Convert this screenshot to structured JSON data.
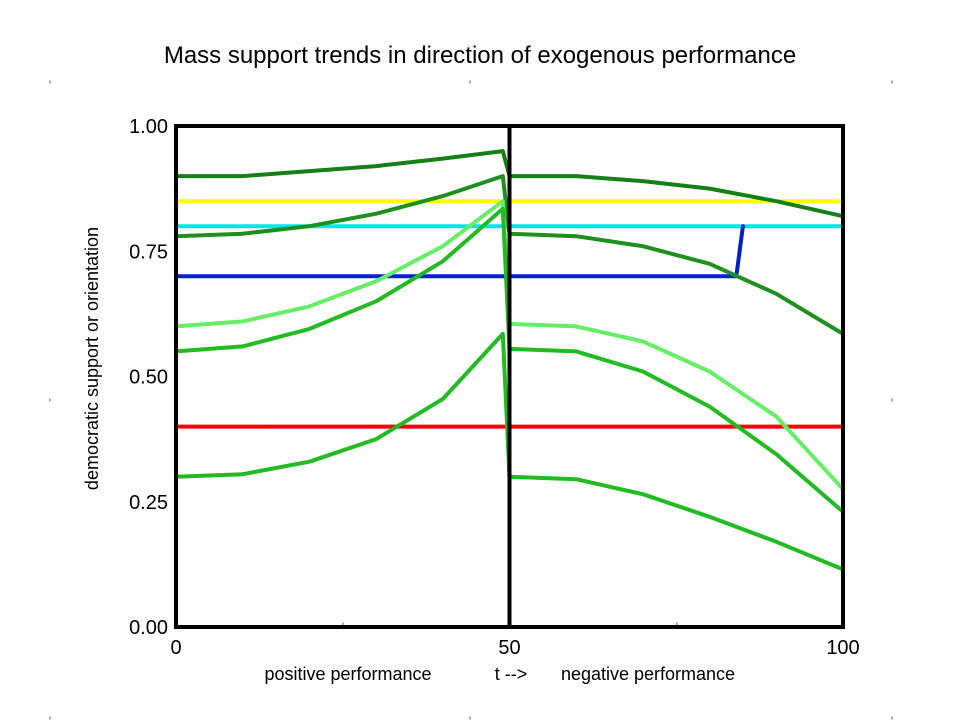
{
  "chart_data": {
    "type": "line",
    "title": "Mass support trends in direction of exogenous performance",
    "xlabel": "t -->",
    "xlabel_left": "positive performance",
    "xlabel_right": "negative performance",
    "ylabel": "democratic support or orientation",
    "xlim": [
      0,
      100
    ],
    "ylim": [
      0,
      1
    ],
    "xticks": [
      {
        "v": 0,
        "label": "0"
      },
      {
        "v": 50,
        "label": "50"
      },
      {
        "v": 100,
        "label": "100"
      }
    ],
    "yticks": [
      {
        "v": 0,
        "label": "0.00"
      },
      {
        "v": 0.25,
        "label": "0.25"
      },
      {
        "v": 0.5,
        "label": "0.50"
      },
      {
        "v": 0.75,
        "label": "0.75"
      },
      {
        "v": 1,
        "label": "1.00"
      }
    ],
    "vline_x": 50,
    "grid": false,
    "series": [
      {
        "color": "#ffff00",
        "points": [
          [
            0,
            0.85
          ],
          [
            100,
            0.85
          ]
        ]
      },
      {
        "color": "#00e5e5",
        "points": [
          [
            0,
            0.8
          ],
          [
            100,
            0.8
          ]
        ]
      },
      {
        "color": "#0022cc",
        "points": [
          [
            0,
            0.7
          ],
          [
            84,
            0.7
          ],
          [
            85,
            0.8
          ]
        ]
      },
      {
        "color": "#ff0000",
        "points": [
          [
            0,
            0.4
          ],
          [
            100,
            0.4
          ]
        ]
      },
      {
        "color": "#158015",
        "points": [
          [
            0,
            0.9
          ],
          [
            10,
            0.9
          ],
          [
            20,
            0.91
          ],
          [
            30,
            0.92
          ],
          [
            40,
            0.935
          ],
          [
            49,
            0.95
          ],
          [
            50,
            0.9
          ],
          [
            60,
            0.9
          ],
          [
            70,
            0.89
          ],
          [
            80,
            0.875
          ],
          [
            90,
            0.85
          ],
          [
            100,
            0.82
          ]
        ]
      },
      {
        "color": "#1e901e",
        "points": [
          [
            0,
            0.78
          ],
          [
            10,
            0.785
          ],
          [
            20,
            0.8
          ],
          [
            30,
            0.825
          ],
          [
            40,
            0.86
          ],
          [
            49,
            0.9
          ],
          [
            50,
            0.785
          ],
          [
            60,
            0.78
          ],
          [
            70,
            0.76
          ],
          [
            80,
            0.725
          ],
          [
            90,
            0.665
          ],
          [
            100,
            0.585
          ]
        ]
      },
      {
        "color": "#66ee66",
        "points": [
          [
            0,
            0.6
          ],
          [
            10,
            0.61
          ],
          [
            20,
            0.64
          ],
          [
            30,
            0.69
          ],
          [
            40,
            0.76
          ],
          [
            49,
            0.85
          ],
          [
            50,
            0.605
          ],
          [
            60,
            0.6
          ],
          [
            70,
            0.57
          ],
          [
            80,
            0.51
          ],
          [
            90,
            0.42
          ],
          [
            100,
            0.275
          ]
        ]
      },
      {
        "color": "#22bb22",
        "points": [
          [
            0,
            0.55
          ],
          [
            10,
            0.56
          ],
          [
            20,
            0.595
          ],
          [
            30,
            0.65
          ],
          [
            40,
            0.73
          ],
          [
            49,
            0.835
          ],
          [
            50,
            0.555
          ],
          [
            60,
            0.55
          ],
          [
            70,
            0.51
          ],
          [
            80,
            0.44
          ],
          [
            90,
            0.345
          ],
          [
            100,
            0.23
          ]
        ]
      },
      {
        "color": "#22bb22",
        "points": [
          [
            0,
            0.3
          ],
          [
            10,
            0.305
          ],
          [
            20,
            0.33
          ],
          [
            30,
            0.375
          ],
          [
            40,
            0.455
          ],
          [
            49,
            0.585
          ],
          [
            50,
            0.3
          ],
          [
            60,
            0.295
          ],
          [
            70,
            0.265
          ],
          [
            80,
            0.22
          ],
          [
            90,
            0.17
          ],
          [
            100,
            0.115
          ]
        ]
      }
    ]
  }
}
